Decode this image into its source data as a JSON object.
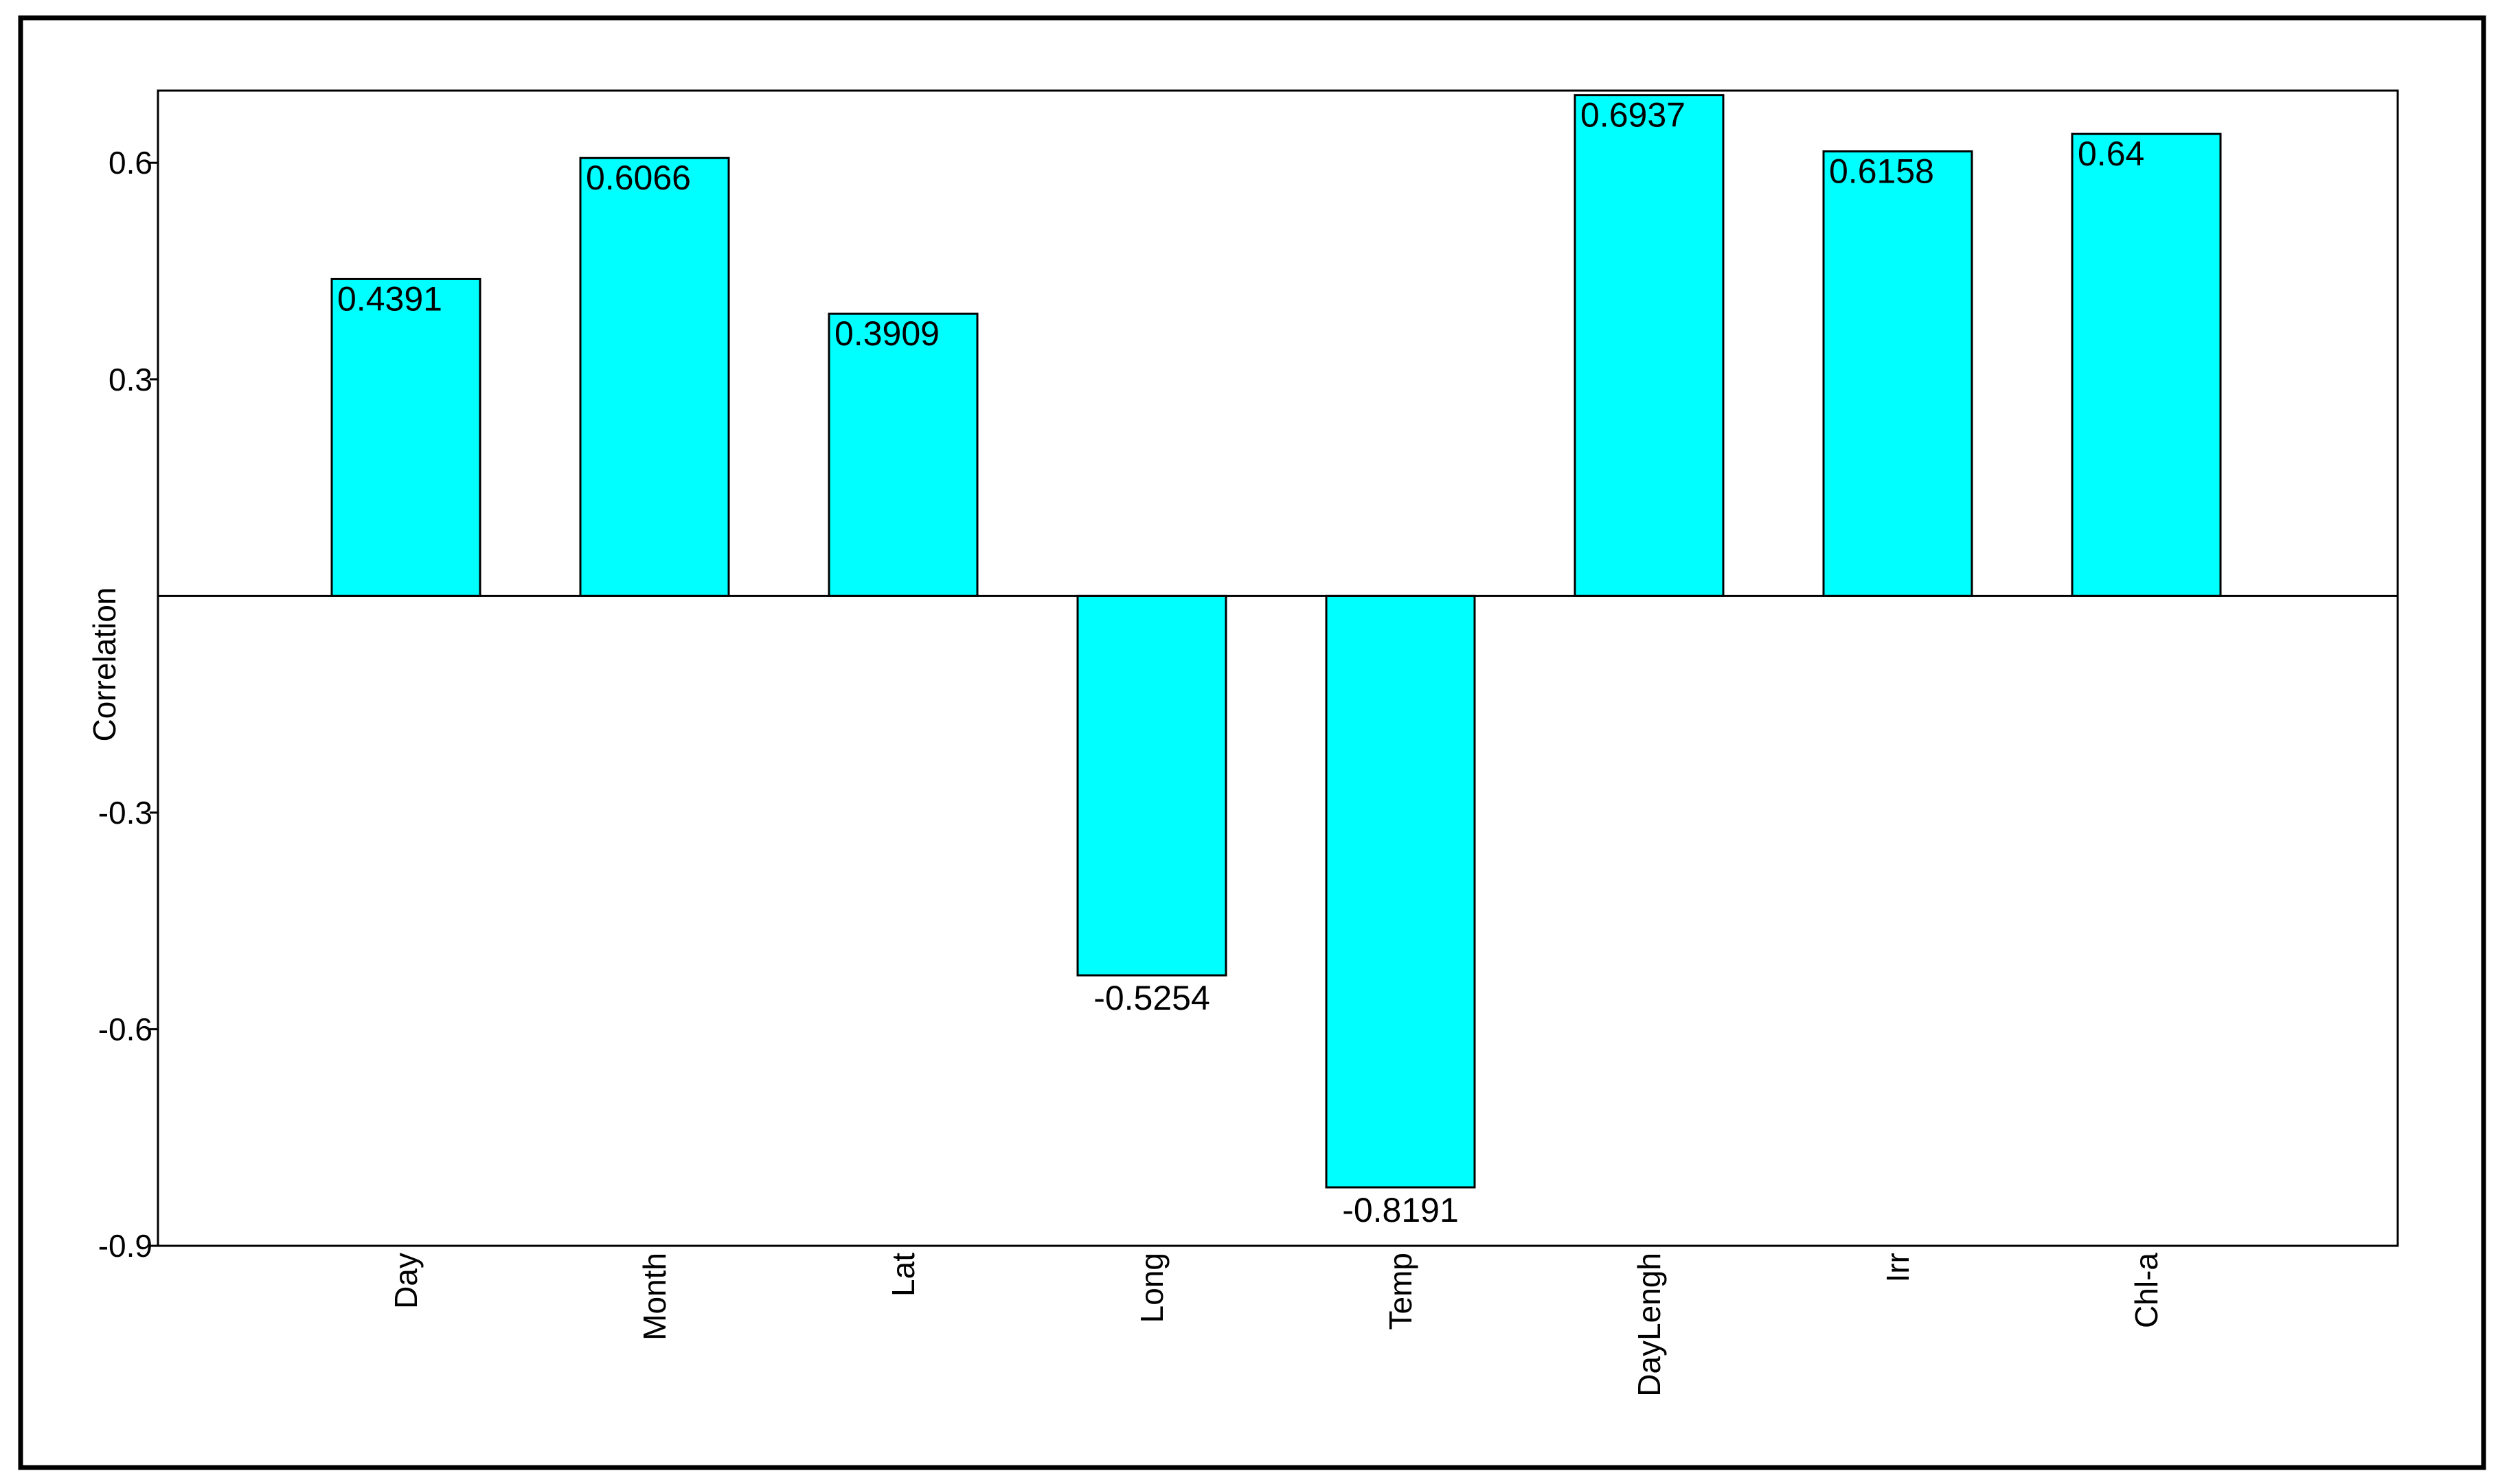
{
  "chart_data": {
    "type": "bar",
    "title": "",
    "xlabel": "",
    "ylabel": "Correlation",
    "categories": [
      "Day",
      "Month",
      "Lat",
      "Long",
      "Temp",
      "DayLengh",
      "Irr",
      "Chl-a"
    ],
    "values": [
      0.4391,
      0.6066,
      0.3909,
      -0.5254,
      -0.8191,
      0.6937,
      0.6158,
      0.64
    ],
    "value_labels": [
      "0.4391",
      "0.6066",
      "0.3909",
      "-0.5254",
      "-0.8191",
      "0.6937",
      "0.6158",
      "0.64"
    ],
    "yticks": [
      0.6,
      0.3,
      -0.3,
      -0.6,
      -0.9
    ],
    "ytick_labels": [
      "0.6",
      "0.3",
      "-0.3",
      "-0.6",
      "-0.9"
    ],
    "ylim": [
      -0.9,
      0.7
    ],
    "grid": false,
    "legend": "none",
    "bar_color": "#00FFFF",
    "bar_edge_color": "#000000"
  }
}
